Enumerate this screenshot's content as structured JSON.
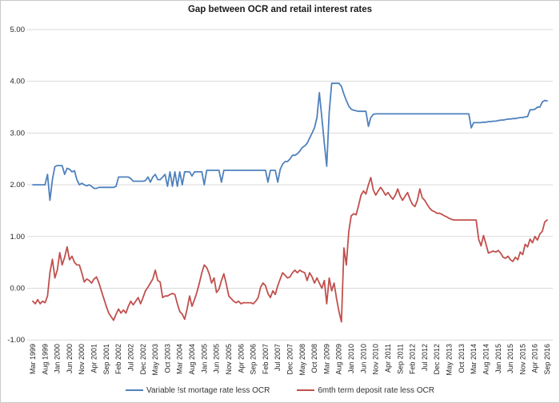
{
  "window": {
    "title": "Gap between OCR and retail interest rates"
  },
  "chart_data": {
    "type": "line",
    "title": "Gap between OCR and retail interest rates",
    "xlabel": "",
    "ylabel": "",
    "ylim": [
      -1.0,
      5.0
    ],
    "grid": "horizontal",
    "legend_position": "bottom",
    "y_tick_labels": [
      "5.00",
      "4.00",
      "3.00",
      "2.00",
      "1.00",
      "0.00",
      "-1.00"
    ],
    "y_tick_values": [
      5,
      4,
      3,
      2,
      1,
      0,
      -1
    ],
    "x_tick_every_months": 5,
    "x_tick_labels": [
      "Mar 1999",
      "Aug 1999",
      "Jan 2000",
      "Jun 2000",
      "Nov 2000",
      "Apr 2001",
      "Sep 2001",
      "Feb 2002",
      "Jul 2002",
      "Dec 2002",
      "May 2003",
      "Oct 2003",
      "Mar 2004",
      "Aug 2004",
      "Jan 2005",
      "Jun 2005",
      "Nov 2005",
      "Apr 2006",
      "Sep 2006",
      "Feb 2007",
      "Jul 2007",
      "Dec 2007",
      "May 2008",
      "Oct 2008",
      "Mar 2009",
      "Aug 2009",
      "Jan 2010",
      "Jun 2010",
      "Nov 2010",
      "Apr 2011",
      "Sep 2011",
      "Feb 2012",
      "Jul 2012",
      "Dec 2012",
      "May 2013",
      "Oct 2013",
      "Mar 2014",
      "Aug 2014",
      "Jan 2015",
      "Jun 2015",
      "Nov 2015",
      "Apr 2016",
      "Sep 2016"
    ],
    "colors": {
      "grid": "#d9d9d9",
      "tick_text": "#262626",
      "border": "#c9c9c9"
    },
    "series": [
      {
        "name": "Variable !st mortage rate less OCR",
        "color": "#4f81bd",
        "values": [
          2.0,
          2.0,
          2.0,
          2.0,
          2.0,
          2.0,
          2.2,
          1.7,
          2.1,
          2.35,
          2.37,
          2.37,
          2.37,
          2.2,
          2.32,
          2.3,
          2.25,
          2.27,
          2.1,
          2.0,
          2.03,
          2.0,
          1.98,
          2.0,
          1.97,
          1.93,
          1.93,
          1.95,
          1.95,
          1.95,
          1.95,
          1.95,
          1.95,
          1.95,
          1.97,
          2.15,
          2.15,
          2.15,
          2.15,
          2.15,
          2.12,
          2.07,
          2.07,
          2.07,
          2.07,
          2.07,
          2.08,
          2.15,
          2.05,
          2.15,
          2.2,
          2.1,
          2.1,
          2.15,
          2.2,
          1.97,
          2.25,
          1.97,
          2.25,
          1.97,
          2.25,
          2.0,
          2.25,
          2.25,
          2.25,
          2.17,
          2.25,
          2.25,
          2.25,
          2.25,
          2.0,
          2.28,
          2.28,
          2.28,
          2.28,
          2.28,
          2.28,
          2.05,
          2.28,
          2.28,
          2.28,
          2.28,
          2.28,
          2.28,
          2.28,
          2.28,
          2.28,
          2.28,
          2.28,
          2.28,
          2.28,
          2.28,
          2.28,
          2.28,
          2.28,
          2.28,
          2.05,
          2.28,
          2.28,
          2.28,
          2.05,
          2.3,
          2.4,
          2.45,
          2.45,
          2.5,
          2.57,
          2.57,
          2.6,
          2.65,
          2.72,
          2.75,
          2.8,
          2.9,
          3.0,
          3.1,
          3.3,
          3.78,
          3.3,
          2.8,
          2.36,
          3.4,
          3.96,
          3.96,
          3.96,
          3.96,
          3.9,
          3.75,
          3.63,
          3.52,
          3.46,
          3.44,
          3.43,
          3.42,
          3.42,
          3.42,
          3.42,
          3.13,
          3.3,
          3.36,
          3.37,
          3.37,
          3.37,
          3.37,
          3.37,
          3.37,
          3.37,
          3.37,
          3.37,
          3.37,
          3.37,
          3.37,
          3.37,
          3.37,
          3.37,
          3.37,
          3.37,
          3.37,
          3.37,
          3.37,
          3.37,
          3.37,
          3.37,
          3.37,
          3.37,
          3.37,
          3.37,
          3.37,
          3.37,
          3.37,
          3.37,
          3.37,
          3.37,
          3.37,
          3.37,
          3.37,
          3.37,
          3.37,
          3.37,
          3.1,
          3.2,
          3.2,
          3.2,
          3.2,
          3.21,
          3.21,
          3.22,
          3.22,
          3.23,
          3.23,
          3.24,
          3.25,
          3.25,
          3.26,
          3.27,
          3.27,
          3.28,
          3.28,
          3.29,
          3.3,
          3.3,
          3.31,
          3.32,
          3.45,
          3.45,
          3.46,
          3.5,
          3.5,
          3.6,
          3.63,
          3.62
        ]
      },
      {
        "name": "6mth term deposit rate less OCR",
        "color": "#c0504d",
        "values": [
          -0.25,
          -0.3,
          -0.22,
          -0.3,
          -0.25,
          -0.28,
          -0.15,
          0.3,
          0.56,
          0.2,
          0.35,
          0.69,
          0.45,
          0.6,
          0.8,
          0.55,
          0.62,
          0.5,
          0.45,
          0.45,
          0.3,
          0.12,
          0.18,
          0.15,
          0.1,
          0.18,
          0.22,
          0.1,
          -0.05,
          -0.2,
          -0.35,
          -0.48,
          -0.55,
          -0.62,
          -0.5,
          -0.4,
          -0.48,
          -0.42,
          -0.48,
          -0.35,
          -0.25,
          -0.32,
          -0.25,
          -0.18,
          -0.3,
          -0.18,
          -0.05,
          0.02,
          0.1,
          0.18,
          0.35,
          0.15,
          0.12,
          -0.18,
          -0.15,
          -0.15,
          -0.12,
          -0.1,
          -0.12,
          -0.3,
          -0.45,
          -0.5,
          -0.6,
          -0.4,
          -0.15,
          -0.35,
          -0.22,
          -0.08,
          0.1,
          0.3,
          0.45,
          0.4,
          0.28,
          0.1,
          0.2,
          -0.08,
          -0.02,
          0.15,
          0.28,
          0.08,
          -0.15,
          -0.2,
          -0.25,
          -0.28,
          -0.25,
          -0.3,
          -0.28,
          -0.28,
          -0.28,
          -0.28,
          -0.3,
          -0.25,
          -0.18,
          0.02,
          0.1,
          0.05,
          -0.1,
          -0.18,
          -0.05,
          -0.12,
          0.05,
          0.18,
          0.3,
          0.25,
          0.2,
          0.22,
          0.3,
          0.35,
          0.3,
          0.35,
          0.32,
          0.3,
          0.15,
          0.3,
          0.22,
          0.1,
          0.2,
          0.1,
          0.0,
          0.15,
          -0.3,
          0.2,
          -0.05,
          0.1,
          -0.2,
          -0.45,
          -0.65,
          0.78,
          0.45,
          1.1,
          1.4,
          1.44,
          1.42,
          1.6,
          1.8,
          1.88,
          1.82,
          2.0,
          2.14,
          1.9,
          1.8,
          1.88,
          1.95,
          1.88,
          1.8,
          1.85,
          1.78,
          1.72,
          1.8,
          1.92,
          1.78,
          1.7,
          1.78,
          1.85,
          1.72,
          1.62,
          1.58,
          1.7,
          1.92,
          1.75,
          1.7,
          1.62,
          1.55,
          1.5,
          1.48,
          1.45,
          1.45,
          1.43,
          1.4,
          1.38,
          1.35,
          1.33,
          1.32,
          1.32,
          1.32,
          1.32,
          1.32,
          1.32,
          1.32,
          1.32,
          1.32,
          1.32,
          0.95,
          0.82,
          1.02,
          0.85,
          0.68,
          0.7,
          0.72,
          0.7,
          0.73,
          0.68,
          0.6,
          0.58,
          0.62,
          0.55,
          0.52,
          0.6,
          0.55,
          0.7,
          0.65,
          0.85,
          0.8,
          0.95,
          0.88,
          1.0,
          0.93,
          1.05,
          1.1,
          1.28,
          1.32
        ]
      }
    ]
  }
}
